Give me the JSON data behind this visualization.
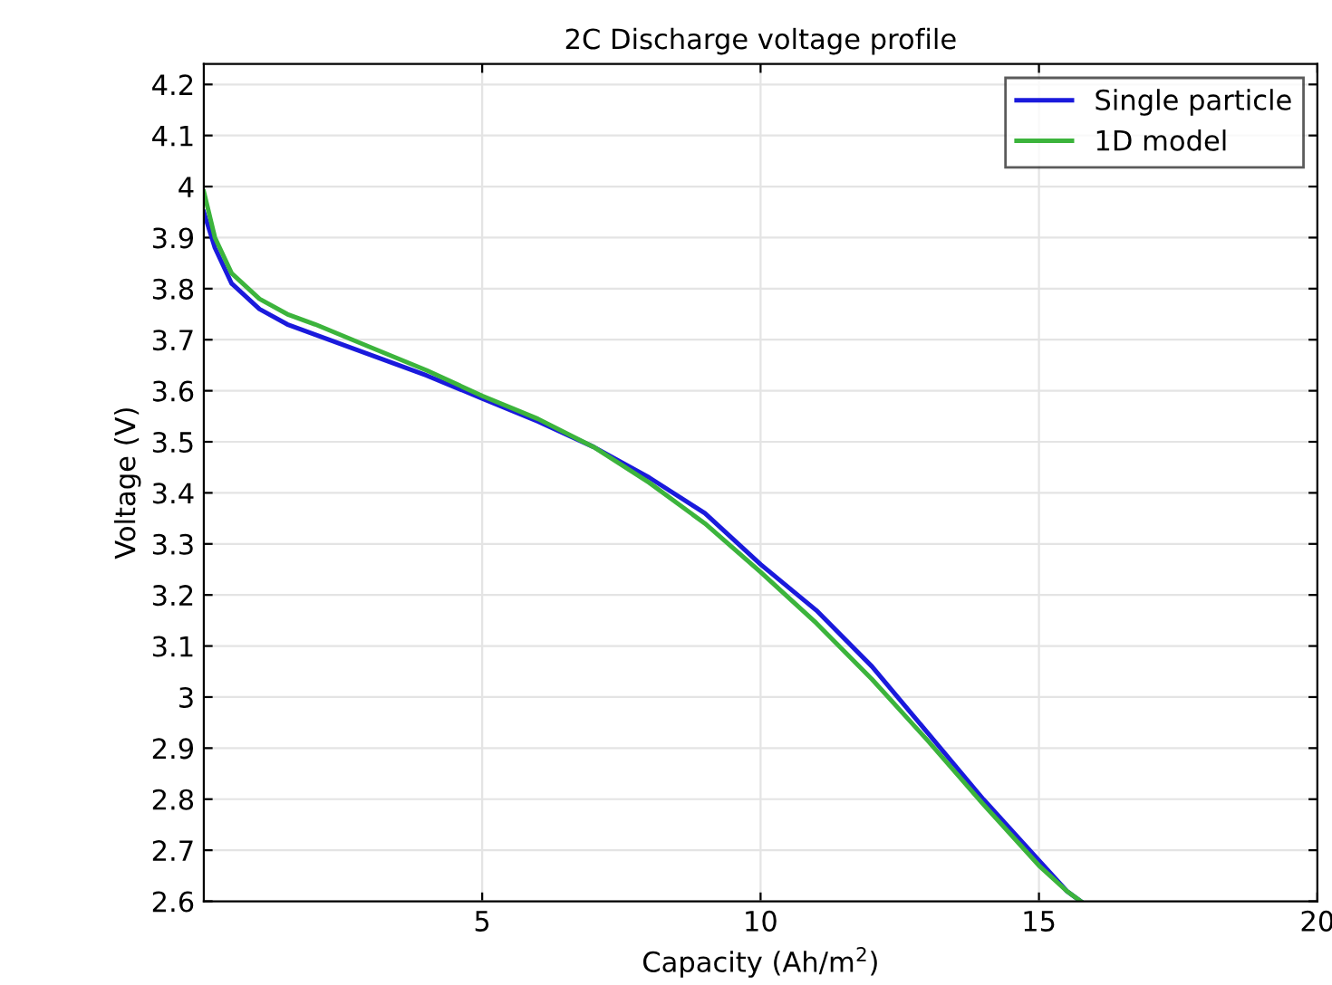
{
  "chart_data": {
    "type": "line",
    "title": "2C Discharge voltage profile",
    "xlabel": "Capacity (Ah/m$^{2}$)",
    "ylabel": "Voltage (V)",
    "xlim": [
      0,
      20
    ],
    "xticks": [
      5,
      10,
      15,
      20
    ],
    "ylim": [
      2.6,
      4.24
    ],
    "yticks": [
      2.6,
      2.7,
      2.8,
      2.9,
      3,
      3.1,
      3.2,
      3.3,
      3.4,
      3.5,
      3.6,
      3.7,
      3.8,
      3.9,
      4,
      4.1,
      4.2
    ],
    "grid": true,
    "legend": "top right",
    "line_style": "solid",
    "marker": "none",
    "series": [
      {
        "name": "Single particle",
        "color": "#1a1adc",
        "x": [
          0,
          0.2,
          0.5,
          1,
          1.5,
          2,
          3,
          4,
          5,
          6,
          7,
          8,
          9,
          10,
          11,
          12,
          13,
          14,
          15,
          15.5,
          15.75
        ],
        "values": [
          3.95,
          3.88,
          3.81,
          3.76,
          3.73,
          3.71,
          3.67,
          3.63,
          3.585,
          3.54,
          3.49,
          3.43,
          3.36,
          3.26,
          3.17,
          3.06,
          2.93,
          2.8,
          2.68,
          2.62,
          2.6
        ]
      },
      {
        "name": "1D model",
        "color": "#3cb43c",
        "x": [
          0,
          0.2,
          0.5,
          1,
          1.5,
          2,
          3,
          4,
          5,
          6,
          7,
          8,
          9,
          10,
          11,
          12,
          13,
          14,
          15,
          15.5,
          15.75
        ],
        "values": [
          3.99,
          3.9,
          3.83,
          3.78,
          3.75,
          3.73,
          3.685,
          3.64,
          3.59,
          3.545,
          3.49,
          3.42,
          3.34,
          3.245,
          3.145,
          3.035,
          2.915,
          2.79,
          2.67,
          2.62,
          2.6
        ]
      }
    ]
  }
}
